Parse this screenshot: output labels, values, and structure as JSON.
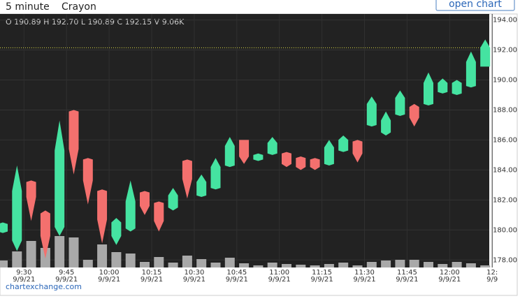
{
  "interval": "5 minute",
  "style": "Crayon",
  "button": "open chart",
  "chart_data": {
    "type": "candlestick",
    "ohlc_text": "O 190.89 H 192.70 L 190.89 C 192.15 V 9.06K",
    "categories": [
      null,
      "9:30",
      null,
      null,
      "9:45",
      null,
      null,
      "10:00",
      null,
      null,
      "10:15",
      null,
      null,
      "10:30",
      null,
      null,
      "10:45",
      null,
      null,
      "11:00",
      null,
      null,
      "11:15",
      null,
      null,
      "11:30",
      null,
      null,
      "11:45",
      null,
      null,
      "12:00",
      null,
      null,
      "12:"
    ],
    "dates": [
      null,
      "9/9/21",
      null,
      null,
      "9/9/21",
      null,
      null,
      "9/9/21",
      null,
      null,
      "9/9/21",
      null,
      null,
      "9/9/21",
      null,
      null,
      "9/9/21",
      null,
      null,
      "9/9/21",
      null,
      null,
      "9/9/21",
      null,
      null,
      "9/9/21",
      null,
      null,
      "9/9/21",
      null,
      null,
      "9/9/21",
      null,
      null,
      "9/9"
    ],
    "open": [
      179.9,
      179.3,
      183.2,
      181.1,
      180.2,
      187.9,
      184.7,
      182.6,
      179.6,
      180.1,
      182.5,
      181.8,
      181.5,
      184.6,
      182.3,
      182.8,
      184.3,
      186.0,
      184.7,
      185.1,
      185.1,
      184.8,
      184.7,
      184.4,
      185.3,
      185.9,
      187.0,
      186.5,
      187.7,
      188.2,
      188.4,
      189.2,
      189.1,
      189.6,
      190.89
    ],
    "high": [
      180.5,
      184.3,
      183.3,
      181.3,
      187.3,
      188.0,
      184.8,
      182.7,
      180.8,
      183.3,
      182.6,
      181.9,
      182.8,
      184.7,
      183.7,
      184.8,
      186.2,
      186.0,
      185.1,
      186.2,
      185.2,
      184.9,
      184.8,
      186.0,
      186.3,
      186.0,
      188.9,
      187.9,
      189.3,
      188.4,
      190.5,
      190.1,
      190.0,
      191.9,
      192.7
    ],
    "low": [
      179.8,
      178.6,
      180.6,
      178.1,
      179.6,
      183.7,
      181.7,
      179.1,
      179.0,
      179.9,
      181.0,
      179.9,
      181.3,
      182.1,
      182.2,
      182.7,
      184.2,
      184.4,
      184.6,
      185.0,
      184.2,
      184.0,
      184.0,
      184.3,
      185.2,
      184.5,
      186.9,
      186.3,
      187.6,
      186.9,
      188.3,
      189.1,
      189.0,
      189.5,
      190.89
    ],
    "close": [
      180.4,
      182.6,
      182.2,
      179.6,
      185.3,
      185.4,
      183.3,
      180.7,
      180.5,
      181.9,
      181.6,
      180.6,
      182.3,
      183.4,
      183.2,
      184.2,
      185.6,
      184.9,
      185.0,
      185.8,
      184.4,
      184.2,
      184.2,
      185.5,
      186.0,
      185.1,
      188.4,
      187.3,
      188.8,
      187.5,
      189.8,
      189.8,
      189.8,
      191.2,
      192.15
    ],
    "volume": [
      30000,
      69000,
      114000,
      84000,
      135000,
      129000,
      33000,
      99000,
      66000,
      60000,
      24000,
      45000,
      21000,
      51000,
      36000,
      21000,
      42000,
      18000,
      9000,
      21000,
      15000,
      12000,
      9000,
      15000,
      21000,
      9000,
      24000,
      30000,
      33000,
      33000,
      24000,
      15000,
      24000,
      18000,
      9060
    ],
    "up_color": "#45e3a1",
    "down_color": "#f4706e",
    "volume_color": "#a9a9a9",
    "last_line_color": "#d8d84a",
    "ylim": [
      177.5,
      194.4
    ],
    "yticks": [
      {
        "value": 178,
        "label": "178.00"
      },
      {
        "value": 180,
        "label": "180.00"
      },
      {
        "value": 182,
        "label": "182.00"
      },
      {
        "value": 184,
        "label": "184.00"
      },
      {
        "value": 186,
        "label": "186.00"
      },
      {
        "value": 188,
        "label": "188.00"
      },
      {
        "value": 190,
        "label": "190.00"
      },
      {
        "value": 192,
        "label": "192.00"
      },
      {
        "value": 194,
        "label": "194.00"
      }
    ],
    "grid": true,
    "watermark": "chartexchange.com"
  }
}
